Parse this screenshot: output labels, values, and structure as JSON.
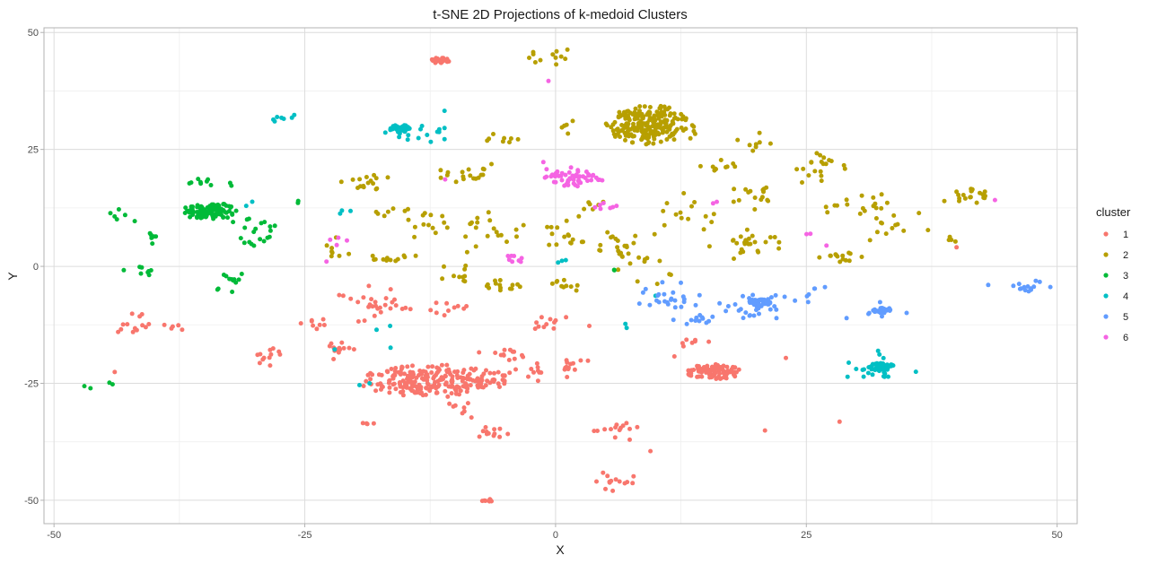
{
  "chart_data": {
    "type": "scatter",
    "title": "t-SNE 2D Projections of k-medoid Clusters",
    "xlabel": "X",
    "ylabel": "Y",
    "xlim": [
      -51,
      52
    ],
    "ylim": [
      -55,
      51
    ],
    "x_ticks": [
      -50,
      -25,
      0,
      25,
      50
    ],
    "y_ticks": [
      -50,
      -25,
      0,
      25,
      50
    ],
    "x_tick_labels": [
      "-50",
      "-25",
      "0",
      "25",
      "50"
    ],
    "y_tick_labels": [
      "-50",
      "-25",
      "0",
      "25",
      "50"
    ],
    "grid": true,
    "legend": {
      "title": "cluster",
      "position": "right"
    },
    "colors": {
      "1": "#F8766D",
      "2": "#B79F00",
      "3": "#00BA38",
      "4": "#00BFC4",
      "5": "#619CFF",
      "6": "#F564E3"
    },
    "series": [
      {
        "name": "1",
        "groups": [
          {
            "cx": -12,
            "cy": -24.5,
            "rx": 7.5,
            "ry": 3.5,
            "n": 230,
            "shape": "ring-dense"
          },
          {
            "cx": 15.8,
            "cy": -22.5,
            "rx": 2.8,
            "ry": 1.6,
            "n": 90,
            "shape": "ring-dense"
          },
          {
            "cx": -11.5,
            "cy": 44,
            "rx": 0.9,
            "ry": 0.6,
            "n": 25,
            "shape": "core"
          },
          {
            "cx": -6.8,
            "cy": -50,
            "rx": 0.6,
            "ry": 0.3,
            "n": 8,
            "shape": "core"
          },
          {
            "cx": -40,
            "cy": -12.5,
            "rx": 3.5,
            "ry": 1.8,
            "n": 18,
            "shape": "scatter"
          },
          {
            "cx": -18,
            "cy": -8,
            "rx": 3,
            "ry": 2.5,
            "n": 28,
            "shape": "scatter"
          },
          {
            "cx": -21.5,
            "cy": -17.5,
            "rx": 2,
            "ry": 1.5,
            "n": 14,
            "shape": "scatter"
          },
          {
            "cx": -28.5,
            "cy": -19,
            "rx": 2,
            "ry": 1.5,
            "n": 12,
            "shape": "scatter"
          },
          {
            "cx": -24,
            "cy": -12,
            "rx": 1.5,
            "ry": 1.5,
            "n": 8,
            "shape": "scatter"
          },
          {
            "cx": -10.5,
            "cy": -9,
            "rx": 2,
            "ry": 1.5,
            "n": 10,
            "shape": "scatter"
          },
          {
            "cx": -5.5,
            "cy": -19,
            "rx": 2,
            "ry": 1.8,
            "n": 14,
            "shape": "scatter"
          },
          {
            "cx": -2,
            "cy": -23,
            "rx": 2,
            "ry": 2,
            "n": 12,
            "shape": "scatter"
          },
          {
            "cx": 0,
            "cy": -12,
            "rx": 2,
            "ry": 1.5,
            "n": 12,
            "shape": "scatter"
          },
          {
            "cx": 2,
            "cy": -21,
            "rx": 1.8,
            "ry": 1.5,
            "n": 12,
            "shape": "scatter"
          },
          {
            "cx": -6.5,
            "cy": -35,
            "rx": 1.5,
            "ry": 1.5,
            "n": 12,
            "shape": "scatter"
          },
          {
            "cx": -9,
            "cy": -30,
            "rx": 1.5,
            "ry": 1.5,
            "n": 8,
            "shape": "scatter"
          },
          {
            "cx": 5.5,
            "cy": -35,
            "rx": 2,
            "ry": 2,
            "n": 14,
            "shape": "scatter"
          },
          {
            "cx": 5.5,
            "cy": -46,
            "rx": 2,
            "ry": 1.8,
            "n": 14,
            "shape": "scatter"
          },
          {
            "cx": -19,
            "cy": -33.5,
            "rx": 0.8,
            "ry": 0.5,
            "n": 4,
            "shape": "scatter"
          },
          {
            "cx": 14,
            "cy": -16,
            "rx": 2,
            "ry": 2,
            "n": 8,
            "shape": "scatter"
          },
          {
            "cx": -44,
            "cy": -22.5,
            "rx": 0.3,
            "ry": 0.3,
            "n": 1,
            "shape": "scatter"
          },
          {
            "cx": 21,
            "cy": -35,
            "rx": 0.3,
            "ry": 0.3,
            "n": 1,
            "shape": "scatter"
          },
          {
            "cx": 28.5,
            "cy": -33.5,
            "rx": 0.3,
            "ry": 0.3,
            "n": 1,
            "shape": "scatter"
          },
          {
            "cx": 9.5,
            "cy": -39.5,
            "rx": 0.3,
            "ry": 0.3,
            "n": 1,
            "shape": "scatter"
          },
          {
            "cx": 23,
            "cy": -19.5,
            "rx": 0.3,
            "ry": 0.3,
            "n": 1,
            "shape": "scatter"
          },
          {
            "cx": 40,
            "cy": 4,
            "rx": 0.3,
            "ry": 0.3,
            "n": 1,
            "shape": "scatter"
          }
        ]
      },
      {
        "name": "2",
        "groups": [
          {
            "cx": 9.2,
            "cy": 30.3,
            "rx": 4.2,
            "ry": 4.2,
            "n": 230,
            "shape": "ring-dense"
          },
          {
            "cx": -0.5,
            "cy": 44.5,
            "rx": 2,
            "ry": 1.2,
            "n": 12,
            "shape": "scatter"
          },
          {
            "cx": -19,
            "cy": 17.5,
            "rx": 2.5,
            "ry": 2,
            "n": 16,
            "shape": "scatter"
          },
          {
            "cx": -16,
            "cy": 12,
            "rx": 2,
            "ry": 1.5,
            "n": 8,
            "shape": "scatter"
          },
          {
            "cx": -8.5,
            "cy": 20,
            "rx": 3,
            "ry": 2,
            "n": 18,
            "shape": "scatter"
          },
          {
            "cx": -12.5,
            "cy": 9,
            "rx": 2,
            "ry": 2.5,
            "n": 12,
            "shape": "scatter"
          },
          {
            "cx": -6.5,
            "cy": 7.5,
            "rx": 2.5,
            "ry": 3,
            "n": 20,
            "shape": "scatter"
          },
          {
            "cx": -16.5,
            "cy": 2,
            "rx": 1.5,
            "ry": 1.5,
            "n": 12,
            "shape": "scatter"
          },
          {
            "cx": -5,
            "cy": -4,
            "rx": 1.5,
            "ry": 1,
            "n": 14,
            "shape": "scatter"
          },
          {
            "cx": -10,
            "cy": -2,
            "rx": 2,
            "ry": 2,
            "n": 10,
            "shape": "scatter"
          },
          {
            "cx": 1,
            "cy": 7,
            "rx": 2.5,
            "ry": 3,
            "n": 16,
            "shape": "scatter"
          },
          {
            "cx": 1,
            "cy": -4,
            "rx": 1.5,
            "ry": 1,
            "n": 10,
            "shape": "scatter"
          },
          {
            "cx": 6.5,
            "cy": 5,
            "rx": 2.5,
            "ry": 3,
            "n": 22,
            "shape": "scatter"
          },
          {
            "cx": 13,
            "cy": 11,
            "rx": 2.5,
            "ry": 3,
            "n": 14,
            "shape": "scatter"
          },
          {
            "cx": 19.5,
            "cy": 5,
            "rx": 3,
            "ry": 2,
            "n": 26,
            "shape": "scatter"
          },
          {
            "cx": 20,
            "cy": 15,
            "rx": 2.5,
            "ry": 2,
            "n": 16,
            "shape": "scatter"
          },
          {
            "cx": 16,
            "cy": 21,
            "rx": 2,
            "ry": 2,
            "n": 10,
            "shape": "scatter"
          },
          {
            "cx": 20,
            "cy": 26,
            "rx": 1.5,
            "ry": 1.5,
            "n": 8,
            "shape": "scatter"
          },
          {
            "cx": 26.5,
            "cy": 21.5,
            "rx": 3,
            "ry": 3,
            "n": 20,
            "shape": "scatter"
          },
          {
            "cx": 30.5,
            "cy": 13.5,
            "rx": 3,
            "ry": 2,
            "n": 16,
            "shape": "scatter"
          },
          {
            "cx": 34,
            "cy": 8,
            "rx": 2,
            "ry": 3,
            "n": 14,
            "shape": "scatter"
          },
          {
            "cx": 28.5,
            "cy": 2,
            "rx": 2,
            "ry": 1.5,
            "n": 14,
            "shape": "scatter"
          },
          {
            "cx": 41,
            "cy": 15,
            "rx": 2,
            "ry": 1.5,
            "n": 20,
            "shape": "scatter"
          },
          {
            "cx": 39.5,
            "cy": 5.5,
            "rx": 0.8,
            "ry": 0.8,
            "n": 4,
            "shape": "scatter"
          },
          {
            "cx": -5,
            "cy": 27.5,
            "rx": 1.5,
            "ry": 1.5,
            "n": 8,
            "shape": "scatter"
          },
          {
            "cx": 1,
            "cy": 30,
            "rx": 1,
            "ry": 1,
            "n": 5,
            "shape": "scatter"
          },
          {
            "cx": 8,
            "cy": -1,
            "rx": 2,
            "ry": 2,
            "n": 10,
            "shape": "scatter"
          },
          {
            "cx": -22,
            "cy": 4,
            "rx": 1.5,
            "ry": 3,
            "n": 8,
            "shape": "scatter"
          },
          {
            "cx": 14,
            "cy": 29,
            "rx": 1,
            "ry": 2,
            "n": 5,
            "shape": "scatter"
          },
          {
            "cx": 4,
            "cy": 13,
            "rx": 1.5,
            "ry": 1.5,
            "n": 6,
            "shape": "scatter"
          }
        ]
      },
      {
        "name": "3",
        "groups": [
          {
            "cx": -34.5,
            "cy": 11.8,
            "rx": 2.8,
            "ry": 1.8,
            "n": 110,
            "shape": "ring-dense"
          },
          {
            "cx": -35,
            "cy": 17.5,
            "rx": 2,
            "ry": 1,
            "n": 10,
            "shape": "scatter"
          },
          {
            "cx": -43.5,
            "cy": 11,
            "rx": 1.5,
            "ry": 1,
            "n": 6,
            "shape": "scatter"
          },
          {
            "cx": -40.5,
            "cy": 7,
            "rx": 1,
            "ry": 2,
            "n": 6,
            "shape": "scatter"
          },
          {
            "cx": -41,
            "cy": -1,
            "rx": 1.5,
            "ry": 0.8,
            "n": 8,
            "shape": "scatter"
          },
          {
            "cx": -30,
            "cy": 7,
            "rx": 2.5,
            "ry": 4,
            "n": 20,
            "shape": "scatter"
          },
          {
            "cx": -32,
            "cy": -3.5,
            "rx": 2,
            "ry": 1.5,
            "n": 12,
            "shape": "scatter"
          },
          {
            "cx": -46,
            "cy": -25,
            "rx": 1.5,
            "ry": 0.8,
            "n": 4,
            "shape": "scatter"
          },
          {
            "cx": -26,
            "cy": 13.5,
            "rx": 0.5,
            "ry": 0.5,
            "n": 2,
            "shape": "scatter"
          },
          {
            "cx": 6,
            "cy": -1,
            "rx": 0.5,
            "ry": 0.5,
            "n": 2,
            "shape": "scatter"
          }
        ]
      },
      {
        "name": "4",
        "groups": [
          {
            "cx": -15.5,
            "cy": 29.5,
            "rx": 1.1,
            "ry": 0.8,
            "n": 35,
            "shape": "core"
          },
          {
            "cx": 32.5,
            "cy": -21.5,
            "rx": 1.2,
            "ry": 0.9,
            "n": 40,
            "shape": "core"
          },
          {
            "cx": 32.5,
            "cy": -21.5,
            "rx": 2.8,
            "ry": 2.2,
            "n": 22,
            "shape": "scatter"
          },
          {
            "cx": -27,
            "cy": 31.5,
            "rx": 1.2,
            "ry": 1,
            "n": 7,
            "shape": "scatter"
          },
          {
            "cx": -15.5,
            "cy": 28.5,
            "rx": 2.5,
            "ry": 2.5,
            "n": 10,
            "shape": "scatter"
          },
          {
            "cx": -11.5,
            "cy": 28.5,
            "rx": 1.5,
            "ry": 4,
            "n": 8,
            "shape": "scatter"
          },
          {
            "cx": -30.5,
            "cy": 13.5,
            "rx": 0.6,
            "ry": 0.6,
            "n": 2,
            "shape": "scatter"
          },
          {
            "cx": -21,
            "cy": 12,
            "rx": 0.8,
            "ry": 0.8,
            "n": 3,
            "shape": "scatter"
          },
          {
            "cx": -17,
            "cy": -13,
            "rx": 0.8,
            "ry": 0.8,
            "n": 2,
            "shape": "scatter"
          },
          {
            "cx": -19,
            "cy": -25.5,
            "rx": 0.5,
            "ry": 0.5,
            "n": 2,
            "shape": "scatter"
          },
          {
            "cx": -22,
            "cy": -18,
            "rx": 0.5,
            "ry": 0.5,
            "n": 1,
            "shape": "scatter"
          },
          {
            "cx": -16.5,
            "cy": -17,
            "rx": 0.5,
            "ry": 0.5,
            "n": 1,
            "shape": "scatter"
          },
          {
            "cx": 7,
            "cy": -13,
            "rx": 0.5,
            "ry": 0.5,
            "n": 2,
            "shape": "scatter"
          },
          {
            "cx": 0.5,
            "cy": 1,
            "rx": 0.8,
            "ry": 0.6,
            "n": 3,
            "shape": "scatter"
          },
          {
            "cx": 36.5,
            "cy": -23,
            "rx": 0.5,
            "ry": 0.5,
            "n": 1,
            "shape": "scatter"
          },
          {
            "cx": 10,
            "cy": -6,
            "rx": 0.5,
            "ry": 0.5,
            "n": 1,
            "shape": "scatter"
          }
        ]
      },
      {
        "name": "5",
        "groups": [
          {
            "cx": 20.3,
            "cy": -7.8,
            "rx": 1.1,
            "ry": 0.8,
            "n": 35,
            "shape": "core"
          },
          {
            "cx": 20,
            "cy": -8,
            "rx": 3,
            "ry": 3,
            "n": 30,
            "shape": "scatter"
          },
          {
            "cx": 32.5,
            "cy": -9.5,
            "rx": 0.9,
            "ry": 0.6,
            "n": 20,
            "shape": "core"
          },
          {
            "cx": 33,
            "cy": -9.5,
            "rx": 2.2,
            "ry": 1.6,
            "n": 8,
            "shape": "scatter"
          },
          {
            "cx": 46.5,
            "cy": -4.5,
            "rx": 1.5,
            "ry": 1.2,
            "n": 14,
            "shape": "scatter"
          },
          {
            "cx": 11,
            "cy": -7,
            "rx": 3,
            "ry": 3.5,
            "n": 26,
            "shape": "scatter"
          },
          {
            "cx": 14.5,
            "cy": -11.5,
            "rx": 1.5,
            "ry": 1,
            "n": 12,
            "shape": "scatter"
          },
          {
            "cx": 25,
            "cy": -5.5,
            "rx": 1.5,
            "ry": 2,
            "n": 6,
            "shape": "scatter"
          },
          {
            "cx": 43,
            "cy": -3.5,
            "rx": 0.4,
            "ry": 0.4,
            "n": 1,
            "shape": "scatter"
          }
        ]
      },
      {
        "name": "6",
        "groups": [
          {
            "cx": 1.8,
            "cy": 18.8,
            "rx": 3,
            "ry": 1.8,
            "n": 55,
            "shape": "ring-dense"
          },
          {
            "cx": 0,
            "cy": 21,
            "rx": 1.5,
            "ry": 1,
            "n": 4,
            "shape": "scatter"
          },
          {
            "cx": 5,
            "cy": 13,
            "rx": 1.2,
            "ry": 1,
            "n": 7,
            "shape": "scatter"
          },
          {
            "cx": -4.5,
            "cy": 1.5,
            "rx": 1.5,
            "ry": 0.8,
            "n": 8,
            "shape": "scatter"
          },
          {
            "cx": -21.5,
            "cy": 5,
            "rx": 1,
            "ry": 0.8,
            "n": 4,
            "shape": "scatter"
          },
          {
            "cx": -11,
            "cy": 18.5,
            "rx": 0.4,
            "ry": 0.4,
            "n": 1,
            "shape": "scatter"
          },
          {
            "cx": -1,
            "cy": 39.5,
            "rx": 0.3,
            "ry": 0.3,
            "n": 1,
            "shape": "scatter"
          },
          {
            "cx": 16,
            "cy": 13.5,
            "rx": 0.6,
            "ry": 0.4,
            "n": 2,
            "shape": "scatter"
          },
          {
            "cx": 25,
            "cy": 7,
            "rx": 0.6,
            "ry": 0.5,
            "n": 2,
            "shape": "scatter"
          },
          {
            "cx": 27,
            "cy": 4.5,
            "rx": 0.3,
            "ry": 0.3,
            "n": 1,
            "shape": "scatter"
          },
          {
            "cx": 43.5,
            "cy": 14,
            "rx": 0.3,
            "ry": 0.3,
            "n": 1,
            "shape": "scatter"
          },
          {
            "cx": -23,
            "cy": 1,
            "rx": 0.3,
            "ry": 0.3,
            "n": 1,
            "shape": "scatter"
          }
        ]
      }
    ]
  }
}
